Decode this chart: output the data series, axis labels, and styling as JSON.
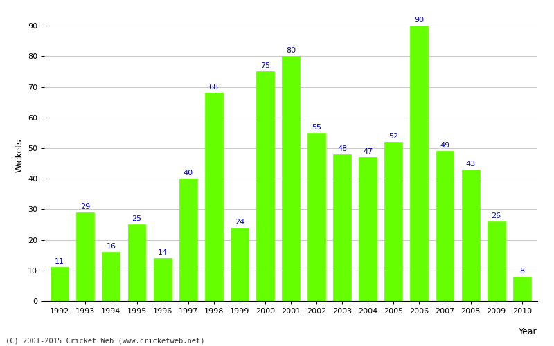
{
  "years": [
    1992,
    1993,
    1994,
    1995,
    1996,
    1997,
    1998,
    1999,
    2000,
    2001,
    2002,
    2003,
    2004,
    2005,
    2006,
    2007,
    2008,
    2009,
    2010
  ],
  "wickets": [
    11,
    29,
    16,
    25,
    14,
    40,
    68,
    24,
    75,
    80,
    55,
    48,
    47,
    52,
    90,
    49,
    43,
    26,
    8
  ],
  "bar_color": "#66ff00",
  "bar_edge_color": "#66ff00",
  "label_color": "#0000cc",
  "xlabel": "Year",
  "ylabel": "Wickets",
  "ylim": [
    0,
    95
  ],
  "yticks": [
    0,
    10,
    20,
    30,
    40,
    50,
    60,
    70,
    80,
    90
  ],
  "grid_color": "#cccccc",
  "background_color": "#ffffff",
  "footer": "(C) 2001-2015 Cricket Web (www.cricketweb.net)",
  "label_fontsize": 8,
  "axis_label_fontsize": 9,
  "tick_fontsize": 8
}
